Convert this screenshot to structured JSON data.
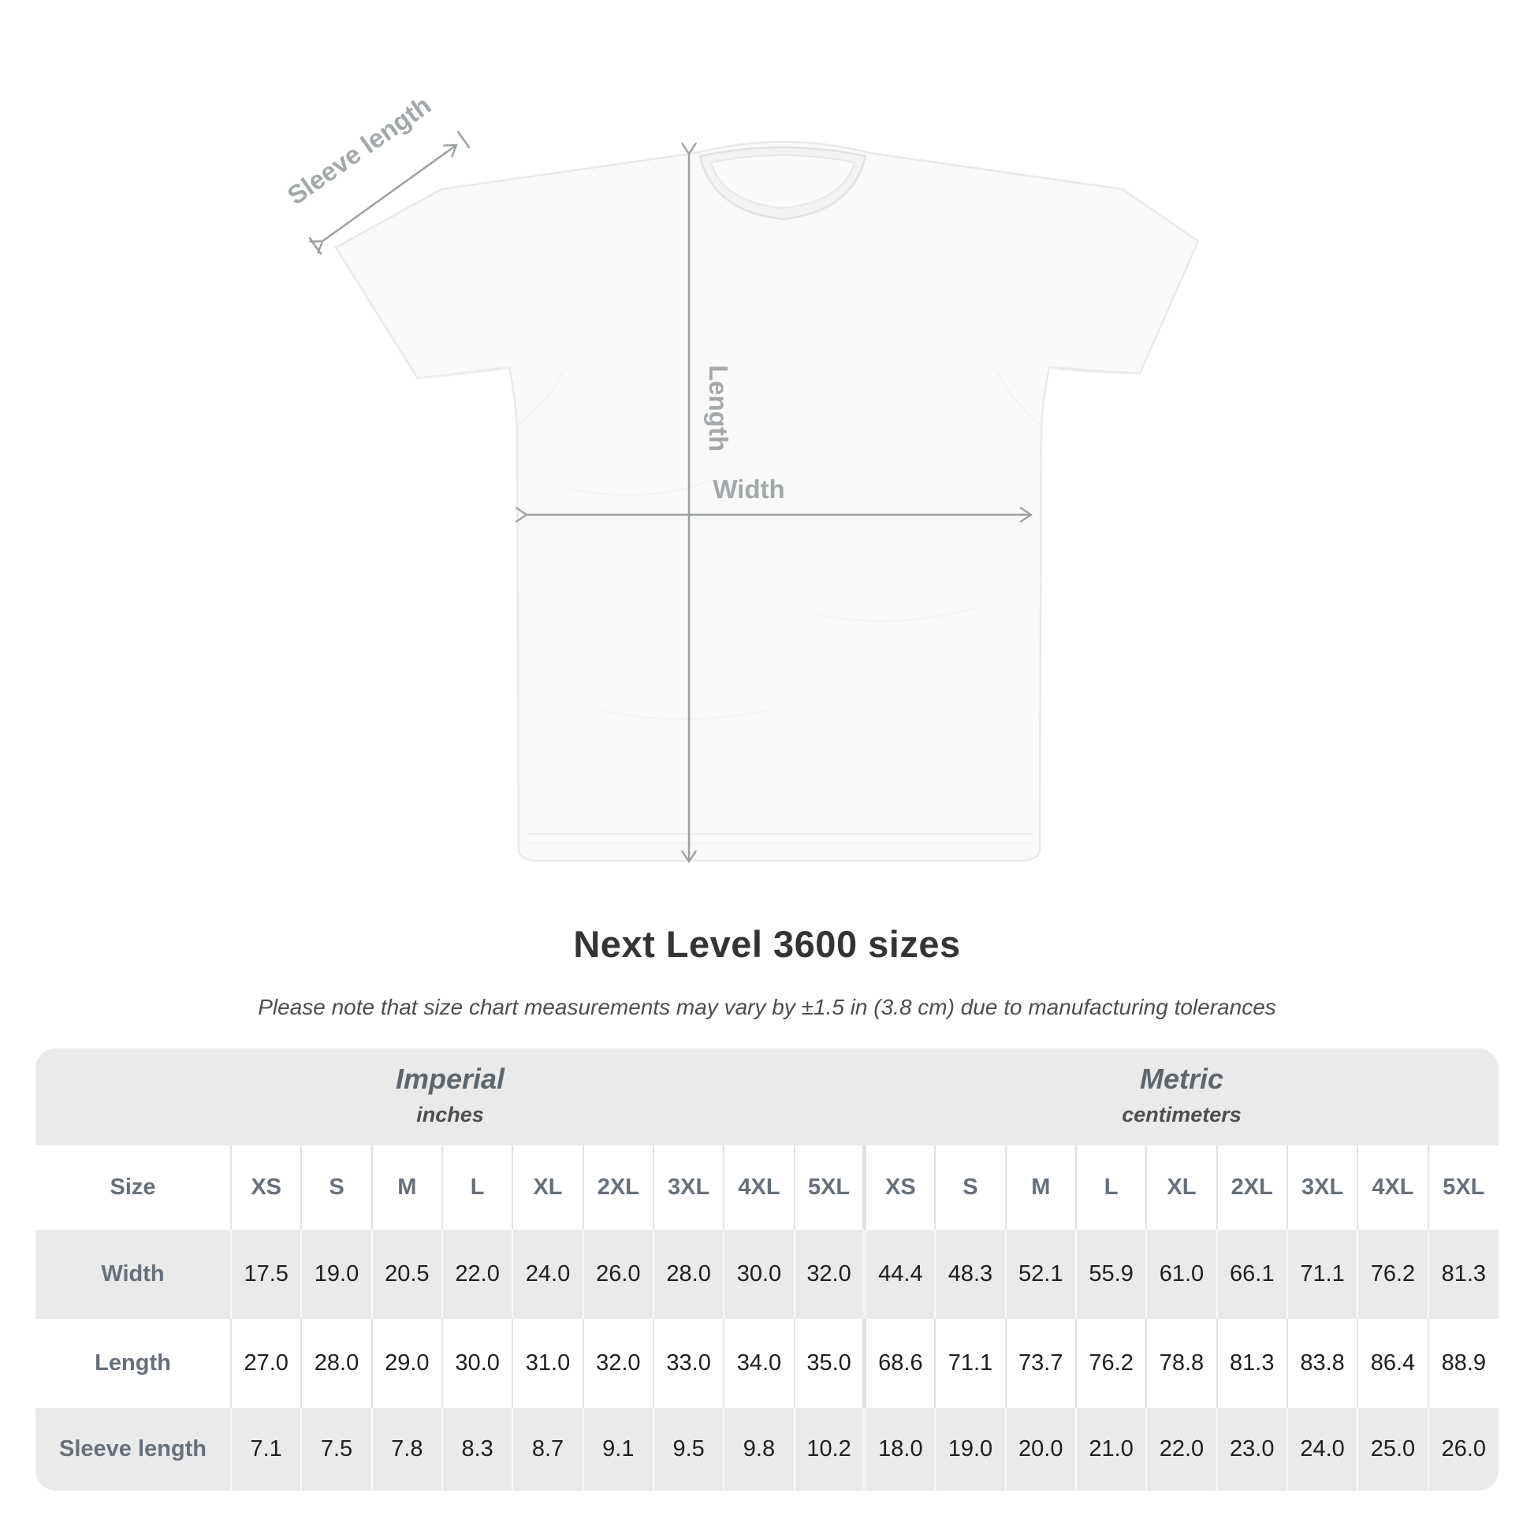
{
  "diagram": {
    "labels": {
      "sleeve_length": "Sleeve length",
      "length": "Length",
      "width": "Width"
    },
    "arrow_color": "#9aa0a3"
  },
  "title": "Next Level 3600 sizes",
  "subtitle": "Please note that size chart measurements may vary by ±1.5 in (3.8 cm) due to manufacturing tolerances",
  "table": {
    "size_header": "Size",
    "groups": [
      {
        "label": "Imperial",
        "sublabel": "inches"
      },
      {
        "label": "Metric",
        "sublabel": "centimeters"
      }
    ],
    "sizes": [
      "XS",
      "S",
      "M",
      "L",
      "XL",
      "2XL",
      "3XL",
      "4XL",
      "5XL"
    ],
    "rows": [
      {
        "label": "Width",
        "imperial": [
          "17.5",
          "19.0",
          "20.5",
          "22.0",
          "24.0",
          "26.0",
          "28.0",
          "30.0",
          "32.0"
        ],
        "metric": [
          "44.4",
          "48.3",
          "52.1",
          "55.9",
          "61.0",
          "66.1",
          "71.1",
          "76.2",
          "81.3"
        ]
      },
      {
        "label": "Length",
        "imperial": [
          "27.0",
          "28.0",
          "29.0",
          "30.0",
          "31.0",
          "32.0",
          "33.0",
          "34.0",
          "35.0"
        ],
        "metric": [
          "68.6",
          "71.1",
          "73.7",
          "76.2",
          "78.8",
          "81.3",
          "83.8",
          "86.4",
          "88.9"
        ]
      },
      {
        "label": "Sleeve length",
        "imperial": [
          "7.1",
          "7.5",
          "7.8",
          "8.3",
          "8.7",
          "9.1",
          "9.5",
          "9.8",
          "10.2"
        ],
        "metric": [
          "18.0",
          "19.0",
          "20.0",
          "21.0",
          "22.0",
          "23.0",
          "24.0",
          "25.0",
          "26.0"
        ]
      }
    ]
  },
  "colors": {
    "band_gray": "#eaeaea",
    "row_gray": "#eaeaea",
    "label_gray": "#67707a",
    "value_dark": "#1e1e1e",
    "arrow_gray": "#9aa0a3"
  },
  "chart_data": {
    "type": "table",
    "title": "Next Level 3600 sizes",
    "note": "Please note that size chart measurements may vary by ±1.5 in (3.8 cm) due to manufacturing tolerances",
    "column_groups": [
      {
        "label": "Imperial",
        "unit": "inches"
      },
      {
        "label": "Metric",
        "unit": "centimeters"
      }
    ],
    "columns": [
      "XS",
      "S",
      "M",
      "L",
      "XL",
      "2XL",
      "3XL",
      "4XL",
      "5XL"
    ],
    "rows": [
      {
        "label": "Width",
        "imperial_in": [
          17.5,
          19.0,
          20.5,
          22.0,
          24.0,
          26.0,
          28.0,
          30.0,
          32.0
        ],
        "metric_cm": [
          44.4,
          48.3,
          52.1,
          55.9,
          61.0,
          66.1,
          71.1,
          76.2,
          81.3
        ]
      },
      {
        "label": "Length",
        "imperial_in": [
          27.0,
          28.0,
          29.0,
          30.0,
          31.0,
          32.0,
          33.0,
          34.0,
          35.0
        ],
        "metric_cm": [
          68.6,
          71.1,
          73.7,
          76.2,
          78.8,
          81.3,
          83.8,
          86.4,
          88.9
        ]
      },
      {
        "label": "Sleeve length",
        "imperial_in": [
          7.1,
          7.5,
          7.8,
          8.3,
          8.7,
          9.1,
          9.5,
          9.8,
          10.2
        ],
        "metric_cm": [
          18.0,
          19.0,
          20.0,
          21.0,
          22.0,
          23.0,
          24.0,
          25.0,
          26.0
        ]
      }
    ],
    "diagram_measurement_labels": [
      "Sleeve length",
      "Length",
      "Width"
    ]
  }
}
